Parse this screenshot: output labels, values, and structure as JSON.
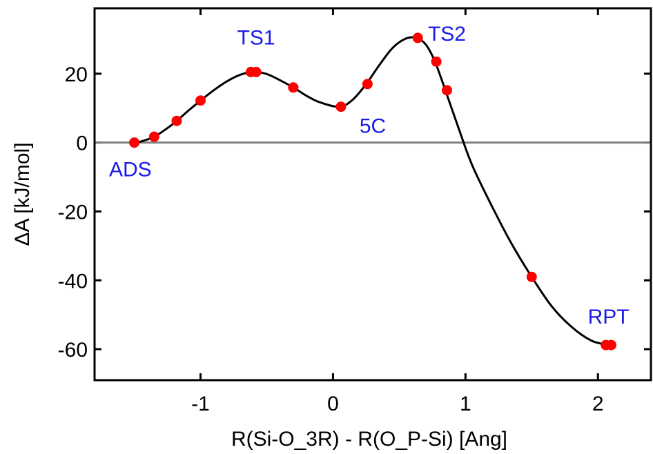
{
  "chart_data": {
    "type": "line",
    "title": "",
    "xlabel": "R(Si-O_3R) - R(O_P-Si) [Ang]",
    "ylabel": "ΔA [kJ/mol]",
    "xlim": [
      -1.8,
      2.4
    ],
    "ylim": [
      -69,
      39
    ],
    "xticks": [
      -1,
      0,
      1,
      2
    ],
    "xtick_labels": [
      "-1",
      "0",
      "1",
      "2"
    ],
    "yticks": [
      -60,
      -40,
      -20,
      0,
      20
    ],
    "ytick_labels": [
      "-60",
      "-40",
      "-20",
      "0",
      "20"
    ],
    "grid": false,
    "legend": "none",
    "reference_line": {
      "y": 0,
      "color": "#808080"
    },
    "curve": {
      "color": "#000000",
      "x": [
        -1.5,
        -1.45,
        -1.35,
        -1.25,
        -1.18,
        -1.1,
        -1.0,
        -0.9,
        -0.8,
        -0.7,
        -0.6,
        -0.5,
        -0.4,
        -0.3,
        -0.2,
        -0.1,
        0.05,
        0.15,
        0.25,
        0.35,
        0.45,
        0.55,
        0.63,
        0.7,
        0.77,
        0.85,
        0.95,
        1.05,
        1.2,
        1.35,
        1.5,
        1.65,
        1.8,
        1.95,
        2.08
      ],
      "y": [
        0.0,
        0.3,
        1.7,
        4.2,
        6.3,
        9.0,
        12.2,
        15.2,
        17.8,
        19.7,
        20.5,
        19.9,
        18.1,
        16.0,
        13.6,
        11.7,
        10.4,
        12.5,
        17.0,
        22.5,
        27.5,
        30.2,
        30.4,
        28.5,
        23.5,
        15.0,
        4.0,
        -6.5,
        -18.5,
        -29.5,
        -39.0,
        -47.5,
        -53.5,
        -57.5,
        -58.8
      ]
    },
    "points": {
      "color": "#ff0000",
      "x": [
        -1.5,
        -1.35,
        -1.18,
        -1.0,
        -0.62,
        -0.58,
        -0.3,
        0.06,
        0.26,
        0.64,
        0.78,
        0.86,
        1.5,
        2.06,
        2.1
      ],
      "y": [
        0.0,
        1.7,
        6.3,
        12.2,
        20.5,
        20.5,
        16.0,
        10.4,
        17.0,
        30.4,
        23.5,
        15.2,
        -39.0,
        -58.8,
        -58.8
      ]
    },
    "annotations": [
      {
        "text": "ADS",
        "x": -1.53,
        "y": -9.8
      },
      {
        "text": "TS1",
        "x": -0.58,
        "y": 28.5
      },
      {
        "text": "5C",
        "x": 0.3,
        "y": 2.8
      },
      {
        "text": "TS2",
        "x": 0.86,
        "y": 29.6
      },
      {
        "text": "RPT",
        "x": 2.08,
        "y": -52.6
      }
    ]
  }
}
